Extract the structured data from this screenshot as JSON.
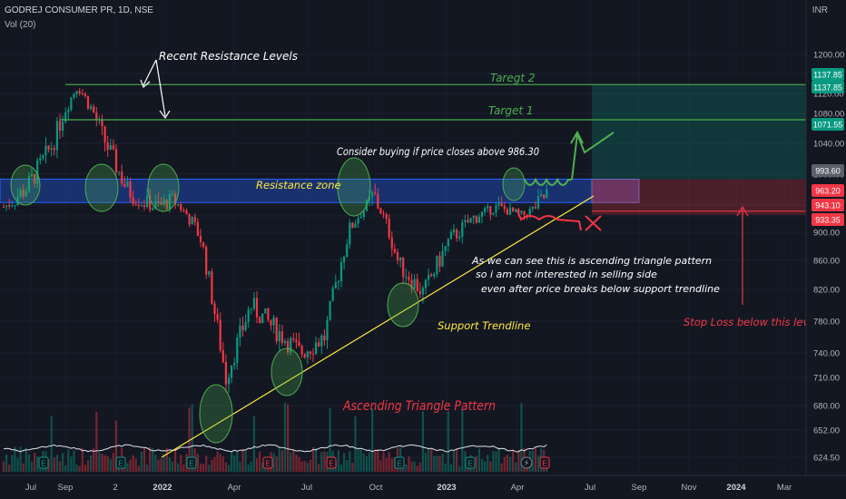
{
  "header": {
    "symbol": "GODREJ CONSUMER PR, 1D, NSE",
    "indicator": "Vol (20)",
    "currency": "INR"
  },
  "chart_data": {
    "type": "candlestick",
    "y_ticks": [
      1200.0,
      1160.0,
      1120.0,
      1080.0,
      1040.0,
      1000.0,
      960.0,
      930.0,
      900.0,
      860.0,
      820.0,
      780.0,
      740.0,
      710.0,
      680.0,
      652.0,
      624.5
    ],
    "x_ticks": [
      "Jul",
      "Sep",
      "2",
      "2022",
      "Apr",
      "Jul",
      "Oct",
      "2023",
      "Apr",
      "Jul",
      "Sep",
      "Nov",
      "2024",
      "Mar"
    ],
    "bold_x_ticks": [
      "2022",
      "2023",
      "2024"
    ],
    "price_badges": [
      {
        "label": "1137.85",
        "value": 1137.85,
        "color": "#089981"
      },
      {
        "label": "1137.85",
        "value": 1137.85,
        "color": "#089981"
      },
      {
        "label": "1071.55",
        "value": 1071.55,
        "color": "#089981"
      },
      {
        "label": "993.60",
        "value": 993.6,
        "color": "#5d606b"
      },
      {
        "label": "963.20",
        "value": 963.2,
        "color": "#f23645"
      },
      {
        "label": "943.10",
        "value": 943.1,
        "color": "#f23645"
      },
      {
        "label": "933.35",
        "value": 933.35,
        "color": "#f23645"
      }
    ],
    "price_path": [
      [
        "2021-06",
        955
      ],
      [
        "2021-07",
        985
      ],
      [
        "2021-08",
        1040
      ],
      [
        "2021-09",
        1137.85
      ],
      [
        "2021-10",
        1050
      ],
      [
        "2021-11",
        980
      ],
      [
        "2021-12",
        955
      ],
      [
        "2022-01",
        965
      ],
      [
        "2022-02",
        890
      ],
      [
        "2022-03",
        710
      ],
      [
        "2022-04",
        800
      ],
      [
        "2022-05",
        770
      ],
      [
        "2022-06",
        740
      ],
      [
        "2022-07",
        760
      ],
      [
        "2022-08",
        905
      ],
      [
        "2022-09",
        975
      ],
      [
        "2022-10",
        855
      ],
      [
        "2022-11",
        815
      ],
      [
        "2022-12",
        885
      ],
      [
        "2023-01",
        925
      ],
      [
        "2023-02",
        955
      ],
      [
        "2023-03",
        930
      ],
      [
        "2023-04",
        975
      ]
    ],
    "annotations": [
      {
        "id": "recent-resistance",
        "text": "Recent Resistance Levels",
        "color": "#ffffff"
      },
      {
        "id": "target2",
        "text": "Taregt 2",
        "color": "#4caf50"
      },
      {
        "id": "target1",
        "text": "Target 1",
        "color": "#4caf50"
      },
      {
        "id": "consider",
        "text": "Consider buying if price closes above 986.30",
        "color": "#ffffff"
      },
      {
        "id": "resistance-zone",
        "text": "Resistance zone",
        "color": "#ffeb3b"
      },
      {
        "id": "pattern-note-1",
        "text": "As we can see this is ascending triangle pattern",
        "color": "#ffffff"
      },
      {
        "id": "pattern-note-2",
        "text": "so i am not interested in selling side",
        "color": "#ffffff"
      },
      {
        "id": "pattern-note-3",
        "text": "even after price breaks below support trendline",
        "color": "#ffffff"
      },
      {
        "id": "support-trendline",
        "text": "Support Trendline",
        "color": "#ffeb3b"
      },
      {
        "id": "ascending-triangle",
        "text": "Ascending Triangle Pattern",
        "color": "#f23645"
      },
      {
        "id": "stop-loss",
        "text": "Stop Loss below this level",
        "color": "#f23645"
      }
    ],
    "levels": {
      "target2": 1137.85,
      "target1": 1071.55,
      "entry": 986.3,
      "resistance_top": 993.6,
      "resistance_bottom": 963.2,
      "stop": 943.1,
      "stop_low": 933.35
    }
  }
}
